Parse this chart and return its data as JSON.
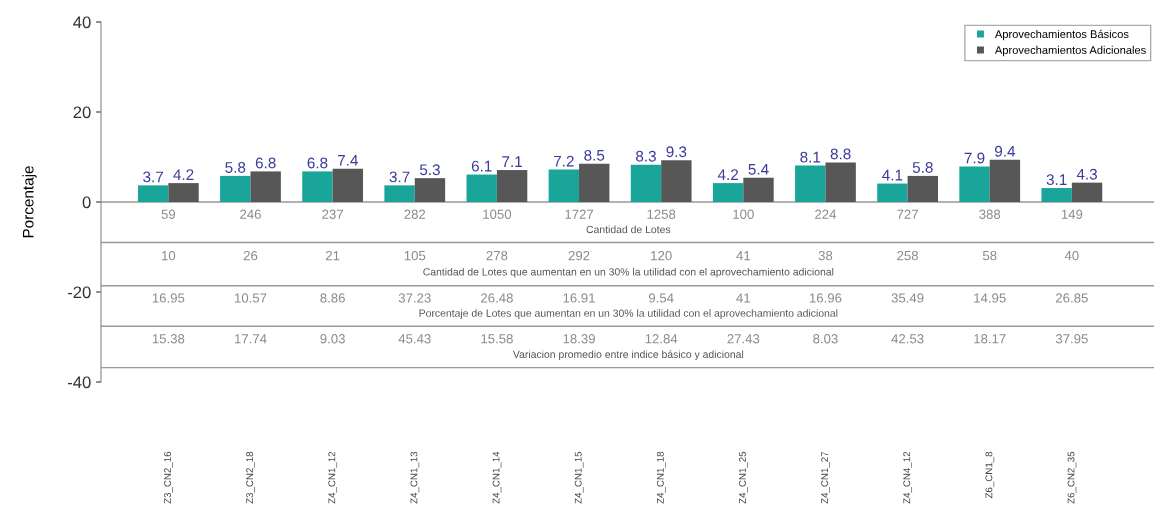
{
  "chart_data": {
    "type": "bar",
    "ylabel": "Porcentaje",
    "categories": [
      "Z3_CN2_16",
      "Z3_CN2_18",
      "Z4_CN1_12",
      "Z4_CN1_13",
      "Z4_CN1_14",
      "Z4_CN1_15",
      "Z4_CN1_18",
      "Z4_CN1_25",
      "Z4_CN1_27",
      "Z4_CN4_12",
      "Z6_CN1_8",
      "Z6_CN2_35"
    ],
    "series": [
      {
        "name": "Aprovechamientos Básicos",
        "color": "#1aa59a",
        "values": [
          3.7,
          5.8,
          6.8,
          3.7,
          6.1,
          7.2,
          8.3,
          4.2,
          8.1,
          4.1,
          7.9,
          3.1
        ]
      },
      {
        "name": "Aprovechamientos Adicionales",
        "color": "#575757",
        "values": [
          4.2,
          6.8,
          7.4,
          5.3,
          7.1,
          8.5,
          9.3,
          5.4,
          8.8,
          5.8,
          9.4,
          4.3
        ]
      }
    ],
    "data_labels": true,
    "ylim": [
      -40,
      40
    ],
    "yticks": [
      -40,
      -20,
      0,
      20,
      40
    ],
    "grid": false,
    "legend": "top right",
    "ref_lines": [
      {
        "axis": "y",
        "value": 0,
        "color": "#999999"
      },
      {
        "axis": "y",
        "value": -9,
        "color": "#999999"
      },
      {
        "axis": "y",
        "value": -18.6,
        "color": "#999999"
      },
      {
        "axis": "y",
        "value": -27.6,
        "color": "#999999"
      },
      {
        "axis": "y",
        "value": -36.8,
        "color": "#999999"
      }
    ],
    "annotations": [
      "59",
      "246",
      "237",
      "282",
      "1050",
      "1727",
      "1258",
      "100",
      "224",
      "727",
      "388",
      "149",
      "Cantidad de Lotes",
      "10",
      "26",
      "21",
      "105",
      "278",
      "292",
      "120",
      "41",
      "38",
      "258",
      "58",
      "40",
      "Cantidad de Lotes que aumentan en un 30% la utilidad con el aprovechamiento adicional",
      "16.95",
      "10.57",
      "8.86",
      "37.23",
      "26.48",
      "16.91",
      "9.54",
      "41",
      "16.96",
      "35.49",
      "14.95",
      "26.85",
      "Porcentaje de Lotes que aumentan en un 30% la utilidad con el aprovechamiento adicional",
      "15.38",
      "17.74",
      "9.03",
      "45.43",
      "15.58",
      "18.39",
      "12.84",
      "27.43",
      "8.03",
      "42.53",
      "18.17",
      "37.95",
      "Variacion promedio entre indice básico y adicional"
    ]
  }
}
